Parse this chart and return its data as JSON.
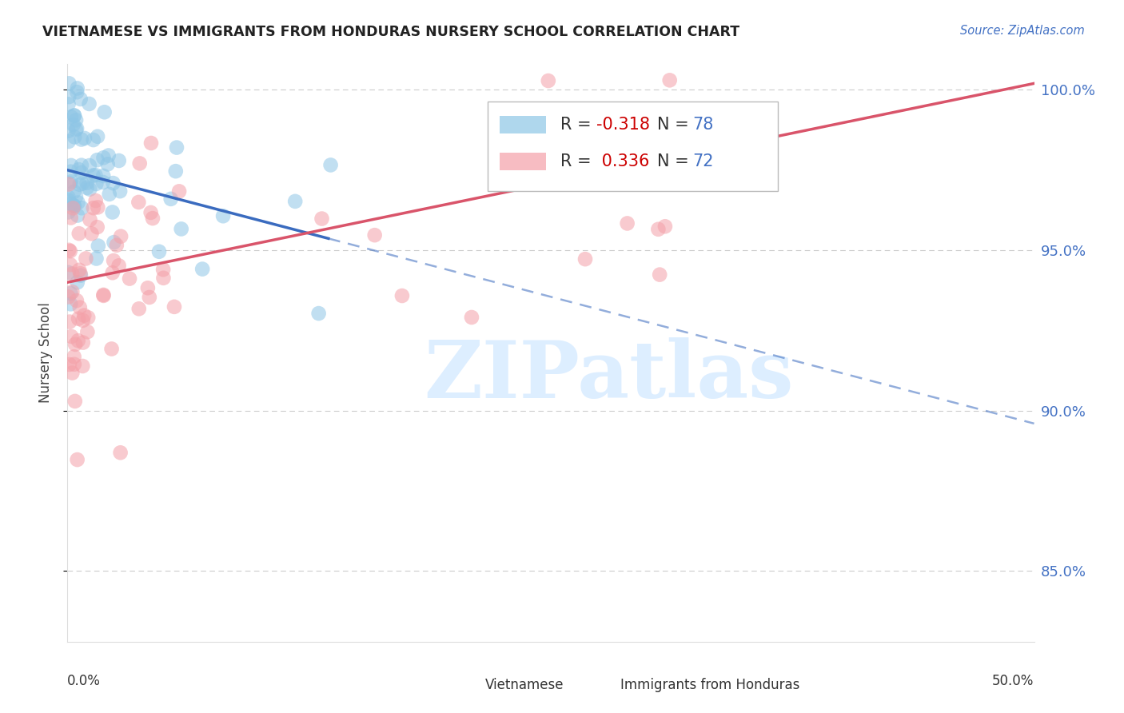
{
  "title": "VIETNAMESE VS IMMIGRANTS FROM HONDURAS NURSERY SCHOOL CORRELATION CHART",
  "source": "Source: ZipAtlas.com",
  "ylabel": "Nursery School",
  "legend_blue_r": "-0.318",
  "legend_blue_n": "78",
  "legend_pink_r": "0.336",
  "legend_pink_n": "72",
  "legend_label_blue": "Vietnamese",
  "legend_label_pink": "Immigrants from Honduras",
  "xlim": [
    0.0,
    0.5
  ],
  "ylim": [
    0.828,
    1.008
  ],
  "yticks": [
    0.85,
    0.9,
    0.95,
    1.0
  ],
  "ytick_labels": [
    "85.0%",
    "90.0%",
    "95.0%",
    "100.0%"
  ],
  "blue_color": "#8ec6e6",
  "pink_color": "#f4a0a8",
  "blue_line_color": "#3a6bbf",
  "pink_line_color": "#d9546a",
  "blue_line_solid_end": 0.135,
  "blue_line_x0": 0.0,
  "blue_line_y0": 0.975,
  "blue_line_x1": 0.5,
  "blue_line_y1": 0.896,
  "pink_line_x0": 0.0,
  "pink_line_y0": 0.94,
  "pink_line_x1": 0.5,
  "pink_line_y1": 1.002,
  "watermark_text": "ZIPatlas",
  "watermark_color": "#ddeeff",
  "background_color": "#ffffff",
  "grid_color": "#cccccc",
  "title_color": "#222222",
  "source_color": "#4472C4",
  "ylabel_color": "#444444",
  "ytick_color": "#4472C4"
}
